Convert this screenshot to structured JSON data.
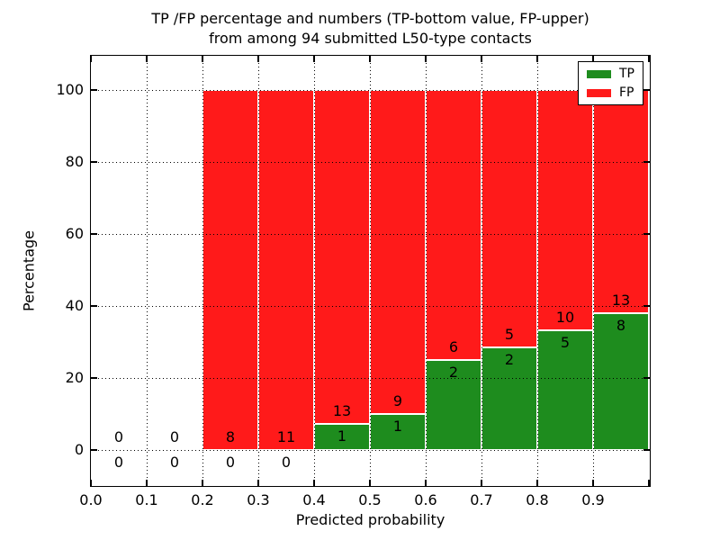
{
  "title": {
    "line1": "TP /FP percentage and numbers (TP-bottom value, FP-upper)",
    "line2": "from among 94 submitted L50-type contacts"
  },
  "axes": {
    "xlabel": "Predicted probability",
    "ylabel": "Percentage"
  },
  "legend": {
    "items": [
      {
        "label": "TP"
      },
      {
        "label": "FP"
      }
    ]
  },
  "chart_data": {
    "type": "bar",
    "stacked": true,
    "title": "TP /FP percentage and numbers (TP-bottom value, FP-upper) from among 94 submitted L50-type contacts",
    "xlabel": "Predicted probability",
    "ylabel": "Percentage",
    "xlim": [
      0.0,
      1.0
    ],
    "ylim": [
      -10,
      110
    ],
    "grid": "dotted both axes",
    "legend_position": "upper right",
    "total_contacts": 94,
    "bin_width": 0.1,
    "bin_starts": [
      0.0,
      0.1,
      0.2,
      0.3,
      0.4,
      0.5,
      0.6,
      0.7,
      0.8,
      0.9
    ],
    "series": [
      {
        "name": "TP",
        "color": "#1e8c1e",
        "counts": [
          0,
          0,
          0,
          0,
          1,
          1,
          2,
          2,
          5,
          8
        ],
        "percent": [
          0,
          0,
          0,
          0,
          7.14,
          10.0,
          25.0,
          28.57,
          33.33,
          38.1
        ]
      },
      {
        "name": "FP",
        "color": "#ff1a1a",
        "counts": [
          0,
          0,
          8,
          11,
          13,
          9,
          6,
          5,
          10,
          13
        ],
        "percent": [
          0,
          0,
          100.0,
          100.0,
          92.86,
          90.0,
          75.0,
          71.43,
          66.67,
          61.9
        ]
      }
    ],
    "x_ticks": {
      "values": [
        0.0,
        0.1,
        0.2,
        0.3,
        0.4,
        0.5,
        0.6,
        0.7,
        0.8,
        0.9
      ],
      "labels": [
        "0.0",
        "0.1",
        "0.2",
        "0.3",
        "0.4",
        "0.5",
        "0.6",
        "0.7",
        "0.8",
        "0.9"
      ]
    },
    "y_ticks": {
      "values": [
        0,
        20,
        40,
        60,
        80,
        100
      ],
      "labels": [
        "0",
        "20",
        "40",
        "60",
        "80",
        "100"
      ]
    }
  }
}
